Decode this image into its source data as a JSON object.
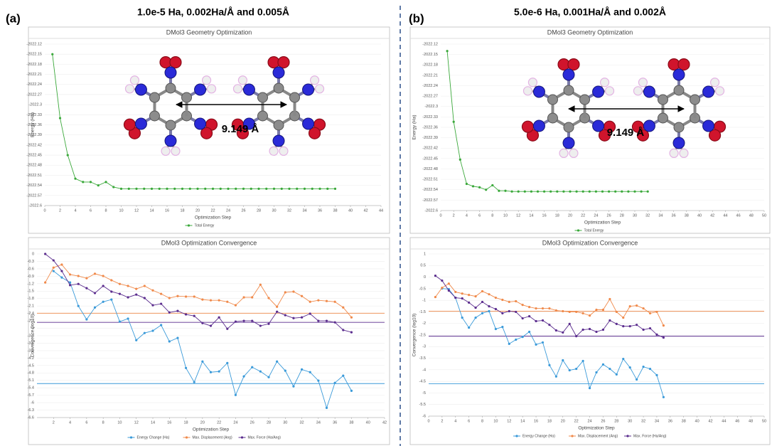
{
  "panels": [
    {
      "label": "(a)",
      "title": "1.0e-5 Ha, 0.002Ha/Å and 0.005Å",
      "distance": "9.149 Å"
    },
    {
      "label": "(b)",
      "title": "5.0e-6 Ha, 0.001Ha/Å and 0.002Å",
      "distance": "9.149 Å"
    }
  ],
  "chart_data": [
    {
      "type": "line",
      "title": "DMol3 Geometry Optimization",
      "x_label": "Optimization Step",
      "y_label": "Energy (Ha)",
      "x": [
        1,
        2,
        3,
        4,
        5,
        6,
        7,
        8,
        9,
        10,
        11,
        12,
        13,
        14,
        15,
        16,
        17,
        18,
        19,
        20,
        21,
        22,
        23,
        24,
        25,
        26,
        27,
        28,
        29,
        30,
        31,
        32,
        33,
        34,
        35,
        36,
        37,
        38
      ],
      "series": [
        {
          "name": "Total Energy",
          "color": "#3aa83a",
          "values": [
            -2022.15,
            -2022.34,
            -2022.45,
            -2022.52,
            -2022.53,
            -2022.53,
            -2022.54,
            -2022.53,
            -2022.545,
            -2022.55,
            -2022.55,
            -2022.55,
            -2022.55,
            -2022.55,
            -2022.55,
            -2022.55,
            -2022.55,
            -2022.55,
            -2022.55,
            -2022.55,
            -2022.55,
            -2022.55,
            -2022.55,
            -2022.55,
            -2022.55,
            -2022.55,
            -2022.55,
            -2022.55,
            -2022.55,
            -2022.55,
            -2022.55,
            -2022.55,
            -2022.55,
            -2022.55,
            -2022.55,
            -2022.55,
            -2022.55,
            -2022.55
          ]
        }
      ],
      "xlim": [
        0,
        44
      ],
      "xticks": [
        0,
        2,
        4,
        6,
        8,
        10,
        12,
        14,
        16,
        18,
        20,
        22,
        24,
        26,
        28,
        30,
        32,
        34,
        36,
        38,
        40,
        42,
        44
      ],
      "ylim": [
        -2022.6,
        -2022.12
      ],
      "yticks": [
        -2022.12,
        -2022.15,
        -2022.18,
        -2022.21,
        -2022.24,
        -2022.27,
        -2022.3,
        -2022.33,
        -2022.36,
        -2022.39,
        -2022.42,
        -2022.45,
        -2022.48,
        -2022.51,
        -2022.54,
        -2022.57,
        -2022.6
      ],
      "grid": true,
      "legend": "bottom"
    },
    {
      "type": "line",
      "title": "DMol3 Optimization Convergence",
      "x_label": "Optimization Step",
      "y_label": "Convergence (log10)",
      "x": [
        1,
        2,
        3,
        4,
        5,
        6,
        7,
        8,
        9,
        10,
        11,
        12,
        13,
        14,
        15,
        16,
        17,
        18,
        19,
        20,
        21,
        22,
        23,
        24,
        25,
        26,
        27,
        28,
        29,
        30,
        31,
        32,
        33,
        34,
        35,
        36,
        37,
        38
      ],
      "series": [
        {
          "name": "Energy Change (Ha)",
          "color": "#3a9ad9",
          "values": [
            null,
            -0.69,
            -0.95,
            -1.15,
            -2.1,
            -2.64,
            -2.16,
            -1.93,
            -1.84,
            -2.73,
            -2.61,
            -3.48,
            -3.19,
            -3.1,
            -2.87,
            -3.53,
            -3.39,
            -4.6,
            -5.17,
            -4.34,
            -4.77,
            -4.74,
            -4.4,
            -5.69,
            -4.94,
            -4.57,
            -4.74,
            -4.97,
            -4.34,
            -4.71,
            -5.34,
            -4.66,
            -4.77,
            -5.11,
            -6.21,
            -5.2,
            -4.91,
            -5.52
          ]
        },
        {
          "name": "Max. Displacement (Ang)",
          "color": "#f08a4b",
          "values": [
            -1.15,
            -0.55,
            -0.43,
            -0.83,
            -0.89,
            -0.98,
            -0.8,
            -0.89,
            -1.06,
            -1.21,
            -1.29,
            -1.41,
            -1.29,
            -1.47,
            -1.61,
            -1.78,
            -1.7,
            -1.72,
            -1.72,
            -1.84,
            -1.87,
            -1.87,
            -1.93,
            -2.07,
            -1.75,
            -1.75,
            -1.24,
            -1.78,
            -2.13,
            -1.55,
            -1.52,
            -1.7,
            -1.93,
            -1.87,
            -1.9,
            -1.93,
            -2.16,
            -2.56
          ]
        },
        {
          "name": "Max. Force (Ha/Ang)",
          "color": "#5b2d8e",
          "values": [
            0,
            -0.26,
            -0.69,
            -1.26,
            -1.21,
            -1.38,
            -1.58,
            -1.29,
            -1.52,
            -1.61,
            -1.75,
            -1.64,
            -1.78,
            -2.07,
            -2.01,
            -2.36,
            -2.3,
            -2.44,
            -2.5,
            -2.79,
            -2.9,
            -2.56,
            -3.02,
            -2.73,
            -2.7,
            -2.7,
            -2.9,
            -2.82,
            -2.33,
            -2.47,
            -2.59,
            -2.56,
            -2.41,
            -2.7,
            -2.7,
            -2.76,
            -3.07,
            -3.16
          ]
        }
      ],
      "thresholds": [
        {
          "value": -5.23,
          "color": "#3a9ad9"
        },
        {
          "value": -2.39,
          "color": "#f08a4b"
        },
        {
          "value": -2.76,
          "color": "#5b2d8e"
        }
      ],
      "xlim": [
        0,
        42
      ],
      "xticks": [
        2,
        4,
        6,
        8,
        10,
        12,
        14,
        16,
        18,
        20,
        22,
        24,
        26,
        28,
        30,
        32,
        34,
        36,
        38,
        40,
        42
      ],
      "ylim": [
        -6.6,
        0
      ],
      "yticks": [
        0,
        -0.3,
        -0.6,
        -0.9,
        -1.2,
        -1.5,
        -1.8,
        -2.1,
        -2.4,
        -2.7,
        -3,
        -3.3,
        -3.6,
        -3.9,
        -4.2,
        -4.5,
        -4.8,
        -5.1,
        -5.4,
        -5.7,
        -6,
        -6.3,
        -6.6
      ],
      "grid": true,
      "legend": "bottom"
    },
    {
      "type": "line",
      "title": "DMol3 Geometry Optimization",
      "x_label": "Optimization Step",
      "y_label": "Energy (Ha)",
      "x": [
        1,
        2,
        3,
        4,
        5,
        6,
        7,
        8,
        9,
        10,
        11,
        12,
        13,
        14,
        15,
        16,
        17,
        18,
        19,
        20,
        21,
        22,
        23,
        24,
        25,
        26,
        27,
        28,
        29,
        30,
        31,
        32
      ],
      "series": [
        {
          "name": "Total Energy",
          "color": "#3aa83a",
          "values": [
            -2022.14,
            -2022.344,
            -2022.453,
            -2022.523,
            -2022.53,
            -2022.533,
            -2022.54,
            -2022.527,
            -2022.543,
            -2022.543,
            -2022.545,
            -2022.545,
            -2022.545,
            -2022.545,
            -2022.545,
            -2022.545,
            -2022.545,
            -2022.545,
            -2022.545,
            -2022.545,
            -2022.545,
            -2022.545,
            -2022.545,
            -2022.545,
            -2022.545,
            -2022.545,
            -2022.545,
            -2022.545,
            -2022.545,
            -2022.545,
            -2022.545,
            -2022.545
          ]
        }
      ],
      "xlim": [
        0,
        50
      ],
      "xticks": [
        0,
        2,
        4,
        6,
        8,
        10,
        12,
        14,
        16,
        18,
        20,
        22,
        24,
        26,
        28,
        30,
        32,
        34,
        36,
        38,
        40,
        42,
        44,
        46,
        48,
        50
      ],
      "ylim": [
        -2022.6,
        -2022.12
      ],
      "yticks": [
        -2022.12,
        -2022.15,
        -2022.18,
        -2022.21,
        -2022.24,
        -2022.27,
        -2022.3,
        -2022.33,
        -2022.36,
        -2022.39,
        -2022.42,
        -2022.45,
        -2022.48,
        -2022.51,
        -2022.54,
        -2022.57,
        -2022.6
      ],
      "grid": true,
      "legend": "bottom"
    },
    {
      "type": "line",
      "title": "DMol3 Optimization Convergence",
      "x_label": "Optimization Step",
      "y_label": "Convergence (log10)",
      "x": [
        1,
        2,
        3,
        4,
        5,
        6,
        7,
        8,
        9,
        10,
        11,
        12,
        13,
        14,
        15,
        16,
        17,
        18,
        19,
        20,
        21,
        22,
        23,
        24,
        25,
        26,
        27,
        28,
        29,
        30,
        31,
        32,
        33,
        34,
        35
      ],
      "series": [
        {
          "name": "Energy Change (Ha)",
          "color": "#3a9ad9",
          "values": [
            null,
            -0.49,
            -0.52,
            -0.89,
            -1.75,
            -2.18,
            -1.75,
            -1.56,
            -1.47,
            -2.24,
            -2.15,
            -2.88,
            -2.7,
            -2.58,
            -2.36,
            -2.91,
            -2.82,
            -3.8,
            -4.29,
            -3.59,
            -4.02,
            -3.96,
            -3.62,
            -4.79,
            -4.11,
            -3.77,
            -3.96,
            -4.2,
            -3.53,
            -3.9,
            -4.42,
            -3.87,
            -3.96,
            -4.23,
            -5.18
          ]
        },
        {
          "name": "Max. Displacement (Ang)",
          "color": "#f08a4b",
          "values": [
            -0.86,
            -0.46,
            -0.28,
            -0.64,
            -0.71,
            -0.77,
            -0.83,
            -0.61,
            -0.74,
            -0.89,
            -0.98,
            -1.07,
            -1.04,
            -1.2,
            -1.29,
            -1.35,
            -1.35,
            -1.35,
            -1.44,
            -1.47,
            -1.5,
            -1.5,
            -1.56,
            -1.66,
            -1.41,
            -1.41,
            -0.95,
            -1.5,
            -1.75,
            -1.26,
            -1.23,
            -1.35,
            -1.56,
            -1.5,
            -2.09
          ]
        },
        {
          "name": "Max. Force (Ha/Ang)",
          "color": "#5b2d8e",
          "values": [
            0.06,
            -0.15,
            -0.58,
            -0.89,
            -0.92,
            -1.1,
            -1.32,
            -1.07,
            -1.26,
            -1.38,
            -1.56,
            -1.47,
            -1.5,
            -1.78,
            -1.69,
            -1.9,
            -1.87,
            -2.06,
            -2.3,
            -2.39,
            -2.02,
            -2.55,
            -2.27,
            -2.24,
            -2.36,
            -2.27,
            -1.87,
            -2.02,
            -2.12,
            -2.12,
            -2.06,
            -2.27,
            -2.21,
            -2.48,
            -2.61
          ]
        }
      ],
      "thresholds": [
        {
          "value": -4.6,
          "color": "#3a9ad9"
        },
        {
          "value": -1.47,
          "color": "#f08a4b"
        },
        {
          "value": -2.55,
          "color": "#5b2d8e"
        }
      ],
      "xlim": [
        0,
        50
      ],
      "xticks": [
        0,
        2,
        4,
        6,
        8,
        10,
        12,
        14,
        16,
        18,
        20,
        22,
        24,
        26,
        28,
        30,
        32,
        34,
        36,
        38,
        40,
        42,
        44,
        46,
        48,
        50
      ],
      "ylim": [
        -6,
        1
      ],
      "yticks": [
        1,
        0.5,
        0,
        -0.5,
        -1,
        -1.5,
        -2,
        -2.5,
        -3,
        -3.5,
        -4,
        -4.5,
        -5,
        -5.5,
        -6
      ],
      "grid": true,
      "legend": "bottom"
    }
  ]
}
